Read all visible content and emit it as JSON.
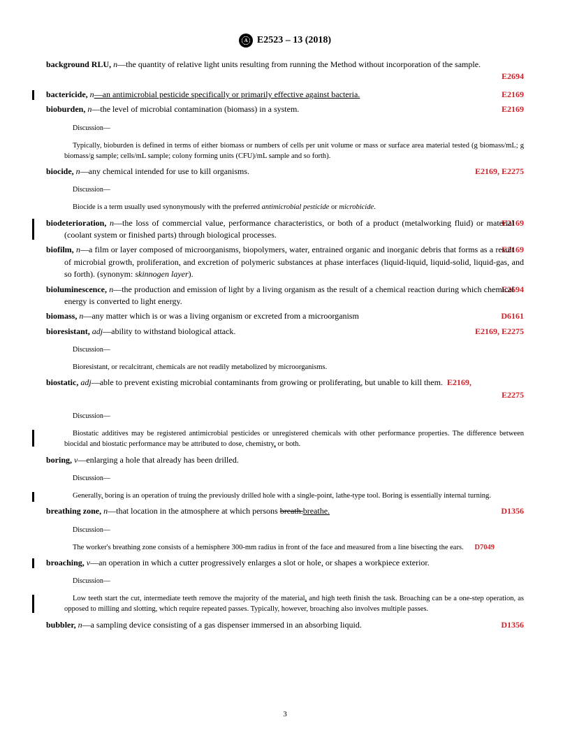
{
  "header": {
    "designation": "E2523 – 13 (2018)"
  },
  "colors": {
    "ref": "#d22128",
    "text": "#000000",
    "bg": "#ffffff"
  },
  "entries": [
    {
      "term": "background RLU,",
      "pos": "n",
      "def": "—the quantity of relative light units resulting from running the Method without incorporation of the sample.",
      "refs": [
        "E2694"
      ],
      "refRightBlock": true
    },
    {
      "term": "bactericide,",
      "pos": "n",
      "def": "—an antimicrobial pesticide specifically or primarily effective against bacteria.",
      "refs": [
        "E2169"
      ],
      "underlineDef": true,
      "bar": 14
    },
    {
      "term": "bioburden,",
      "pos": "n",
      "def": "—the level of microbial contamination (biomass) in a system.",
      "refs": [
        "E2169"
      ],
      "discussion": "Typically, bioburden is defined in terms of either biomass or numbers of cells per unit volume or mass or surface area material tested (g biomass/mL; g biomass/g sample; cells/mL sample; colony forming units (CFU)/mL sample and so forth)."
    },
    {
      "term": "biocide,",
      "pos": "n",
      "def": "—any chemical intended for use to kill organisms.",
      "refs": [
        "E2169",
        "E2275"
      ],
      "discussionHtml": "Biocide is a term usually used synonymously with the preferred <span class=\"italic\">antimicrobial pesticide</span> or <span class=\"italic\">microbicide</span>."
    },
    {
      "term": "biodeterioration,",
      "pos": "n",
      "defHtml": "—the loss of commercial value, performance characteristics<span class=\"underline\">,</span> or both of a product (metalworking fluid) or material (coolant system or finished parts) through biological processes.",
      "refs": [
        "E2169"
      ],
      "bar": 30
    },
    {
      "term": "biofilm,",
      "pos": "n",
      "defHtml": "—a film or layer composed of microorganisms, biopolymers, water, entrained organic and inorganic debris that forms as a result of microbial growth, proliferation<span class=\"underline\">,</span> and excretion of polymeric substances at phase interfaces (liquid-liquid, liquid-solid, liquid-gas, and so forth). (synonym: <span class=\"italic\">skinnogen layer</span>).",
      "refs": [
        "E2169"
      ]
    },
    {
      "term": "bioluminescence,",
      "pos": "n",
      "def": "—the production and emission of light by a living organism as the result of a chemical reaction during which chemical energy is converted to light energy.",
      "refs": [
        "E2694"
      ]
    },
    {
      "term": "biomass,",
      "pos": "n",
      "def": "—any matter which is or was a living organism or excreted from a microorganism",
      "refs": [
        "D6161"
      ]
    },
    {
      "term": "bioresistant,",
      "pos": "adj",
      "def": "—ability to withstand biological attack.",
      "refs": [
        "E2169",
        "E2275"
      ],
      "discussion": "Bioresistant, or recalcitrant, chemicals are not readily metabolized by microorganisms."
    },
    {
      "term": "biostatic,",
      "pos": "adj",
      "def": "—able to prevent existing microbial contaminants from growing or proliferating, but unable to kill them.",
      "refs": [
        "E2169",
        "E2275"
      ],
      "refsInline": true,
      "discussionHtml": "Biostatic additives may be registered antimicrobial pesticides or unregistered chemicals with other performance properties. The difference between biocidal and biostatic performance may be attributed to dose, chemistry<span class=\"underline\">,</span> or both.",
      "discBar": 24
    },
    {
      "term": "boring,",
      "pos": "v",
      "def": "—enlarging a hole that already has been drilled.",
      "discussionHtml": "Generally<span class=\"underline\">,</span> boring is an operation of truing the previously drilled hole with a single-point, lathe-type tool. Boring is essentially internal turning.",
      "discBar": 14
    },
    {
      "term": "breathing zone,",
      "pos": "n",
      "defHtml": "—that location in the atmosphere at which persons <span class=\"strike\">breath.</span><span class=\"underline\">breathe.</span>",
      "refs": [
        "D1356"
      ],
      "discussionHtml": "The worker's breathing zone consists of a hemisphere 300-mm radius in front of the face and measured from a line bisecting the ears.&nbsp;&nbsp;&nbsp;&nbsp;&nbsp;&nbsp;<span class=\"ref-inline\">D7049</span>"
    },
    {
      "term": "broaching,",
      "pos": "v",
      "defHtml": "—an operation in which a cutter progressively enlarges a slot or hole<span class=\"underline\">,</span> or shapes a workpiece exterior.",
      "bar": 14,
      "discussionHtml": "Low teeth start the cut, intermediate teeth remove the majority of the material<span class=\"underline\">,</span> and high teeth finish the task. Broaching can be a one-step operation, as opposed to milling and slotting, which require repeated passes. Typically, however, broaching also involves multiple passes.",
      "discBar": 26
    },
    {
      "term": "bubbler,",
      "pos": "n",
      "def": "—a sampling device consisting of a gas dispenser immersed in an absorbing liquid.",
      "refs": [
        "D1356"
      ]
    }
  ],
  "pageNumber": "3"
}
